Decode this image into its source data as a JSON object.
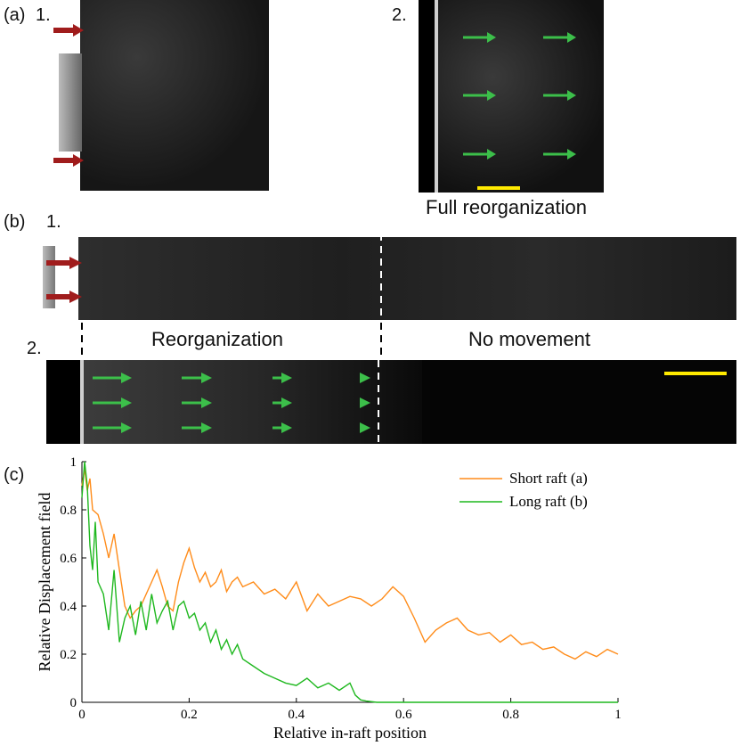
{
  "panels": {
    "a": {
      "label": "(a)",
      "sub1": "1.",
      "sub2": "2.",
      "caption": "Full reorganization"
    },
    "b": {
      "label": "(b)",
      "sub1": "1.",
      "sub2": "2.",
      "region_left": "Reorganization",
      "region_right": "No movement"
    },
    "c": {
      "label": "(c)"
    }
  },
  "colors": {
    "push_arrow": "#a01c1c",
    "flow_arrow": "#3cbf4a",
    "scale_bar": "#ffea00",
    "short_raft": "#ff8c1a",
    "long_raft": "#1fb81f"
  },
  "chart_data": {
    "type": "line",
    "xlabel": "Relative in-raft position",
    "ylabel": "Relative Displacement field",
    "xlim": [
      0,
      1
    ],
    "ylim": [
      0,
      1
    ],
    "xticks": [
      "0",
      "0.2",
      "0.4",
      "0.6",
      "0.8",
      "1"
    ],
    "yticks": [
      "0",
      "0.2",
      "0.4",
      "0.6",
      "0.8",
      "1"
    ],
    "legend_position": "top-right",
    "series": [
      {
        "name": "Short raft (a)",
        "color": "#ff8c1a",
        "x": [
          0,
          0.005,
          0.01,
          0.015,
          0.02,
          0.03,
          0.04,
          0.05,
          0.06,
          0.07,
          0.08,
          0.09,
          0.1,
          0.11,
          0.12,
          0.13,
          0.14,
          0.15,
          0.16,
          0.17,
          0.18,
          0.19,
          0.2,
          0.21,
          0.22,
          0.23,
          0.24,
          0.25,
          0.26,
          0.27,
          0.28,
          0.29,
          0.3,
          0.32,
          0.34,
          0.36,
          0.38,
          0.4,
          0.42,
          0.44,
          0.46,
          0.48,
          0.5,
          0.52,
          0.54,
          0.56,
          0.58,
          0.6,
          0.62,
          0.64,
          0.66,
          0.68,
          0.7,
          0.72,
          0.74,
          0.76,
          0.78,
          0.8,
          0.82,
          0.84,
          0.86,
          0.88,
          0.9,
          0.92,
          0.94,
          0.96,
          0.98,
          1.0
        ],
        "y": [
          0.9,
          0.97,
          0.88,
          0.93,
          0.8,
          0.78,
          0.7,
          0.6,
          0.7,
          0.55,
          0.4,
          0.35,
          0.38,
          0.4,
          0.45,
          0.5,
          0.55,
          0.48,
          0.4,
          0.38,
          0.5,
          0.58,
          0.64,
          0.56,
          0.5,
          0.54,
          0.48,
          0.5,
          0.55,
          0.46,
          0.5,
          0.52,
          0.48,
          0.5,
          0.45,
          0.47,
          0.43,
          0.5,
          0.38,
          0.45,
          0.4,
          0.42,
          0.44,
          0.43,
          0.4,
          0.43,
          0.48,
          0.44,
          0.35,
          0.25,
          0.3,
          0.33,
          0.35,
          0.3,
          0.28,
          0.29,
          0.25,
          0.28,
          0.24,
          0.25,
          0.22,
          0.23,
          0.2,
          0.18,
          0.21,
          0.19,
          0.22,
          0.2
        ]
      },
      {
        "name": "Long raft (b)",
        "color": "#1fb81f",
        "x": [
          0,
          0.005,
          0.01,
          0.015,
          0.02,
          0.025,
          0.03,
          0.04,
          0.05,
          0.06,
          0.07,
          0.08,
          0.09,
          0.1,
          0.11,
          0.12,
          0.13,
          0.14,
          0.15,
          0.16,
          0.17,
          0.18,
          0.19,
          0.2,
          0.21,
          0.22,
          0.23,
          0.24,
          0.25,
          0.26,
          0.27,
          0.28,
          0.29,
          0.3,
          0.32,
          0.34,
          0.36,
          0.38,
          0.4,
          0.42,
          0.44,
          0.46,
          0.48,
          0.5,
          0.51,
          0.52,
          0.53,
          0.55,
          0.6,
          0.7,
          0.8,
          0.9,
          1.0
        ],
        "y": [
          0.85,
          1.0,
          0.9,
          0.65,
          0.55,
          0.75,
          0.5,
          0.45,
          0.3,
          0.55,
          0.25,
          0.35,
          0.4,
          0.28,
          0.42,
          0.3,
          0.45,
          0.33,
          0.38,
          0.42,
          0.3,
          0.4,
          0.42,
          0.35,
          0.37,
          0.3,
          0.33,
          0.25,
          0.3,
          0.22,
          0.26,
          0.2,
          0.24,
          0.18,
          0.15,
          0.12,
          0.1,
          0.08,
          0.07,
          0.1,
          0.06,
          0.08,
          0.05,
          0.08,
          0.03,
          0.01,
          0.005,
          0,
          0,
          0,
          0,
          0,
          0
        ]
      }
    ]
  }
}
